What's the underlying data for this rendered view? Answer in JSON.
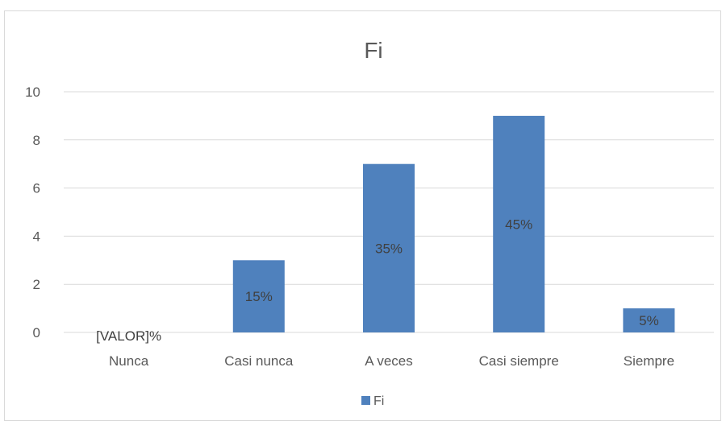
{
  "chart_data": {
    "type": "bar",
    "title": "Fi",
    "categories": [
      "Nunca",
      "Casi nunca",
      "A veces",
      "Casi siempre",
      "Siempre"
    ],
    "series": [
      {
        "name": "Fi",
        "values": [
          0,
          3,
          7,
          9,
          1
        ],
        "data_labels": [
          "[VALOR]%",
          "15%",
          "35%",
          "45%",
          "5%"
        ]
      }
    ],
    "ylim": [
      0,
      10
    ],
    "yticks": [
      0,
      2,
      4,
      6,
      8,
      10
    ],
    "grid": true,
    "legend": "bottom",
    "colors": {
      "bar": "#4f81bd",
      "grid": "#d9d9d9",
      "text": "#595959"
    }
  }
}
